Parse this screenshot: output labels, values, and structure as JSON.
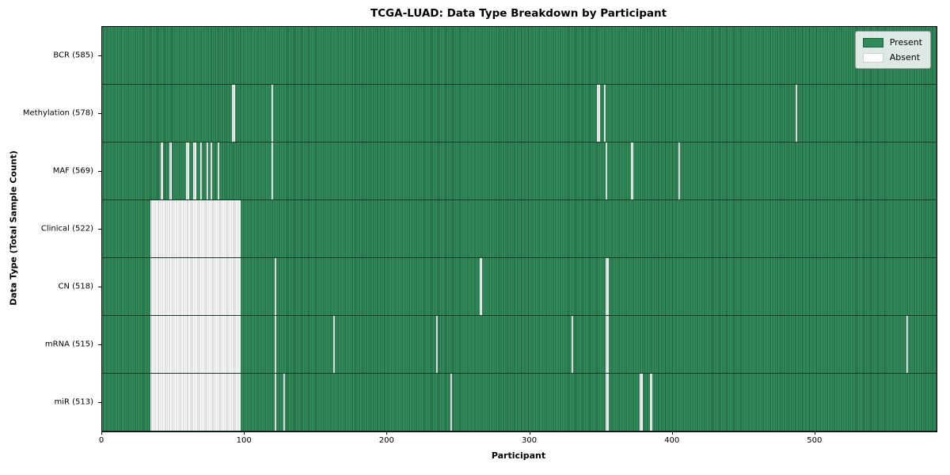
{
  "title": "TCGA-LUAD: Data Type Breakdown by Participant",
  "xlabel": "Participant",
  "ylabel": "Data Type (Total Sample Count)",
  "legend": {
    "present_label": "Present",
    "absent_label": "Absent"
  },
  "colors": {
    "present": "#2e8b57",
    "present_edge": "#1f5e3e",
    "absent": "#ffffff",
    "absent_edge": "#c6c6c6"
  },
  "chart_data": {
    "type": "heatmap",
    "title": "TCGA-LUAD: Data Type Breakdown by Participant",
    "xlabel": "Participant",
    "ylabel": "Data Type (Total Sample Count)",
    "legend": [
      "Present",
      "Absent"
    ],
    "legend_position": "upper right",
    "x_range": [
      0,
      585
    ],
    "x_ticks": [
      0,
      100,
      200,
      300,
      400,
      500
    ],
    "n_participants": 585,
    "value_encoding": {
      "present": "green",
      "absent": "white"
    },
    "rows": [
      {
        "label": "BCR (585)",
        "name": "BCR",
        "count": 585,
        "absent_runs": []
      },
      {
        "label": "Methylation (578)",
        "name": "Methylation",
        "count": 578,
        "absent_runs": [
          [
            91,
            2
          ],
          [
            119,
            1
          ],
          [
            347,
            2
          ],
          [
            352,
            1
          ],
          [
            486,
            1
          ]
        ]
      },
      {
        "label": "MAF (569)",
        "name": "MAF",
        "count": 569,
        "absent_runs": [
          [
            41,
            2
          ],
          [
            47,
            2
          ],
          [
            59,
            2
          ],
          [
            64,
            2
          ],
          [
            69,
            1
          ],
          [
            73,
            1
          ],
          [
            76,
            1
          ],
          [
            81,
            1
          ],
          [
            119,
            1
          ],
          [
            353,
            1
          ],
          [
            371,
            1
          ],
          [
            404,
            1
          ]
        ]
      },
      {
        "label": "Clinical (522)",
        "name": "Clinical",
        "count": 522,
        "absent_runs": [
          [
            34,
            63
          ]
        ]
      },
      {
        "label": "CN (518)",
        "name": "CN",
        "count": 518,
        "absent_runs": [
          [
            34,
            63
          ],
          [
            121,
            1
          ],
          [
            265,
            1
          ],
          [
            353,
            2
          ]
        ]
      },
      {
        "label": "mRNA (515)",
        "name": "mRNA",
        "count": 515,
        "absent_runs": [
          [
            34,
            63
          ],
          [
            121,
            1
          ],
          [
            162,
            1
          ],
          [
            234,
            1
          ],
          [
            329,
            1
          ],
          [
            353,
            2
          ],
          [
            564,
            1
          ]
        ]
      },
      {
        "label": "miR (513)",
        "name": "miR",
        "count": 513,
        "absent_runs": [
          [
            34,
            63
          ],
          [
            121,
            1
          ],
          [
            127,
            1
          ],
          [
            244,
            1
          ],
          [
            353,
            2
          ],
          [
            377,
            2
          ],
          [
            384,
            2
          ]
        ]
      }
    ]
  }
}
